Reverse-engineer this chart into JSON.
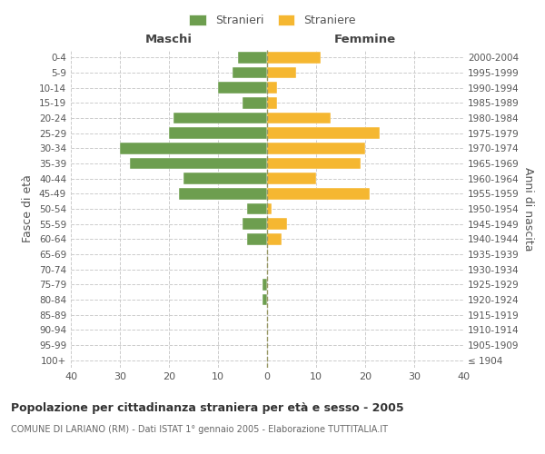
{
  "age_groups": [
    "100+",
    "95-99",
    "90-94",
    "85-89",
    "80-84",
    "75-79",
    "70-74",
    "65-69",
    "60-64",
    "55-59",
    "50-54",
    "45-49",
    "40-44",
    "35-39",
    "30-34",
    "25-29",
    "20-24",
    "15-19",
    "10-14",
    "5-9",
    "0-4"
  ],
  "birth_years": [
    "≤ 1904",
    "1905-1909",
    "1910-1914",
    "1915-1919",
    "1920-1924",
    "1925-1929",
    "1930-1934",
    "1935-1939",
    "1940-1944",
    "1945-1949",
    "1950-1954",
    "1955-1959",
    "1960-1964",
    "1965-1969",
    "1970-1974",
    "1975-1979",
    "1980-1984",
    "1985-1989",
    "1990-1994",
    "1995-1999",
    "2000-2004"
  ],
  "males": [
    0,
    0,
    0,
    0,
    1,
    1,
    0,
    0,
    4,
    5,
    4,
    18,
    17,
    28,
    30,
    20,
    19,
    5,
    10,
    7,
    6
  ],
  "females": [
    0,
    0,
    0,
    0,
    0,
    0,
    0,
    0,
    3,
    4,
    1,
    21,
    10,
    19,
    20,
    23,
    13,
    2,
    2,
    6,
    11
  ],
  "male_color": "#6d9e4f",
  "female_color": "#f5b731",
  "title": "Popolazione per cittadinanza straniera per età e sesso - 2005",
  "subtitle": "COMUNE DI LARIANO (RM) - Dati ISTAT 1° gennaio 2005 - Elaborazione TUTTITALIA.IT",
  "ylabel_left": "Fasce di età",
  "ylabel_right": "Anni di nascita",
  "xlabel_left": "Maschi",
  "xlabel_right": "Femmine",
  "xlim": 40,
  "legend_stranieri": "Stranieri",
  "legend_straniere": "Straniere",
  "bg_color": "#ffffff",
  "grid_color": "#cccccc"
}
